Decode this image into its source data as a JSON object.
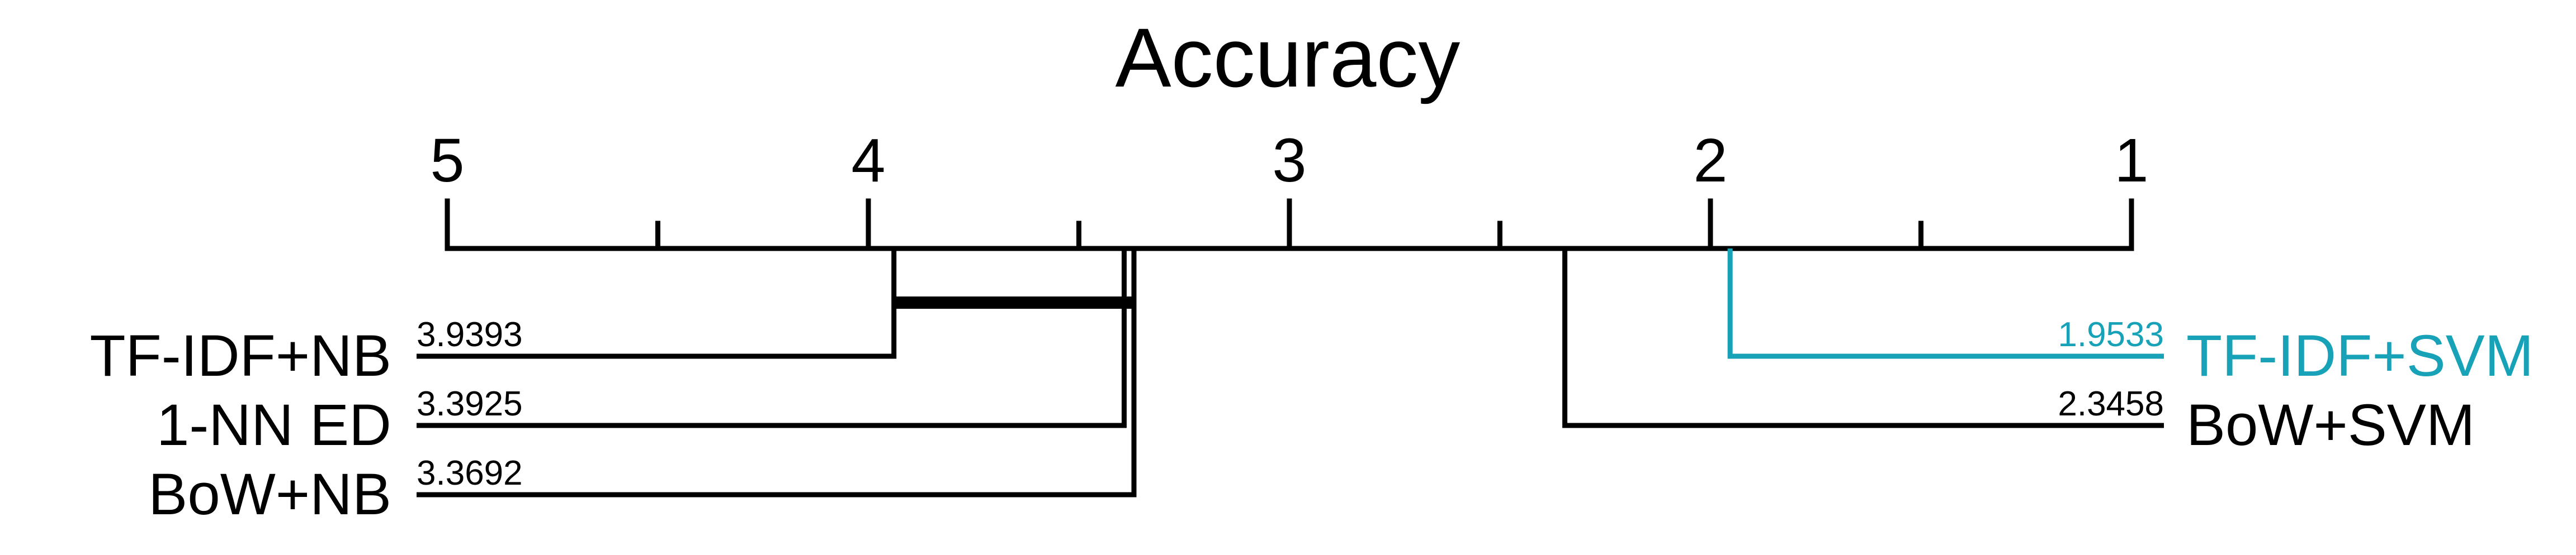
{
  "chart_data": {
    "type": "critical-difference-diagram",
    "title": "Accuracy",
    "axis": {
      "range": [
        5,
        1
      ],
      "ticks": [
        "5",
        "4",
        "3",
        "2",
        "1"
      ],
      "minor_step": 0.5
    },
    "methods": [
      {
        "name": "TF-IDF+NB",
        "rank": 3.9393,
        "rank_label": "3.9393",
        "side": "left",
        "color": "#000000"
      },
      {
        "name": "1-NN ED",
        "rank": 3.3925,
        "rank_label": "3.3925",
        "side": "left",
        "color": "#000000"
      },
      {
        "name": "BoW+NB",
        "rank": 3.3692,
        "rank_label": "3.3692",
        "side": "left",
        "color": "#000000"
      },
      {
        "name": "TF-IDF+SVM",
        "rank": 1.9533,
        "rank_label": "1.9533",
        "side": "right",
        "color": "#17a2b8"
      },
      {
        "name": "BoW+SVM",
        "rank": 2.3458,
        "rank_label": "2.3458",
        "side": "right",
        "color": "#000000"
      }
    ],
    "cliques": [
      {
        "from": 3.9393,
        "to": 3.3692
      }
    ]
  }
}
